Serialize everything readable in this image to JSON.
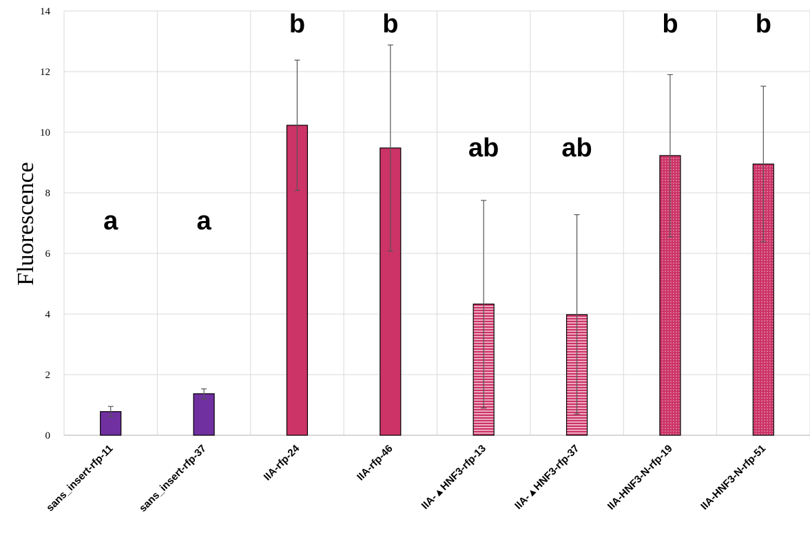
{
  "chart_data": {
    "type": "bar",
    "title": "",
    "xlabel": "",
    "ylabel": "Fluorescence",
    "ylim": [
      0,
      14
    ],
    "yticks": [
      0,
      2,
      4,
      6,
      8,
      10,
      12,
      14
    ],
    "ytick_labels": [
      "0",
      "2",
      "4",
      "6",
      "8",
      "10",
      "12",
      "14"
    ],
    "grid": "vertical and horizontal, light gray",
    "categories": [
      "sans_insert-rfp-11",
      "sans_insert-rfp-37",
      "IIA-rfp-24",
      "IIA-rfp-46",
      "IIA-▲HNF3-rfp-13",
      "IIA-▲HNF3-rfp-37",
      "IIA-HNF3-N-rfp-19",
      "IIA-HNF3-N-rfp-51"
    ],
    "values": [
      0.78,
      1.37,
      10.23,
      9.48,
      4.33,
      3.98,
      9.23,
      8.95
    ],
    "error_upper": [
      0.95,
      1.53,
      12.38,
      12.88,
      7.75,
      7.28,
      11.9,
      11.52
    ],
    "error_lower": [
      0.62,
      1.2,
      8.08,
      6.08,
      0.9,
      0.7,
      6.55,
      6.38
    ],
    "significance_labels": [
      "a",
      "a",
      "b",
      "b",
      "ab",
      "ab",
      "b",
      "b"
    ],
    "significance_y": [
      6.8,
      6.8,
      13.3,
      13.3,
      9.2,
      9.2,
      13.3,
      13.3
    ],
    "colors": {
      "purple": "#7030A0",
      "crimson": "#CC3366",
      "pattern_bg": "#CC3366",
      "pattern_fg": "#F4C6D6",
      "grid": "#D9D9D9",
      "error_bar": "#555555"
    },
    "bar_styles": [
      "purple",
      "purple",
      "solid",
      "solid",
      "horizontal-stripes",
      "horizontal-stripes",
      "dots",
      "dots"
    ]
  }
}
